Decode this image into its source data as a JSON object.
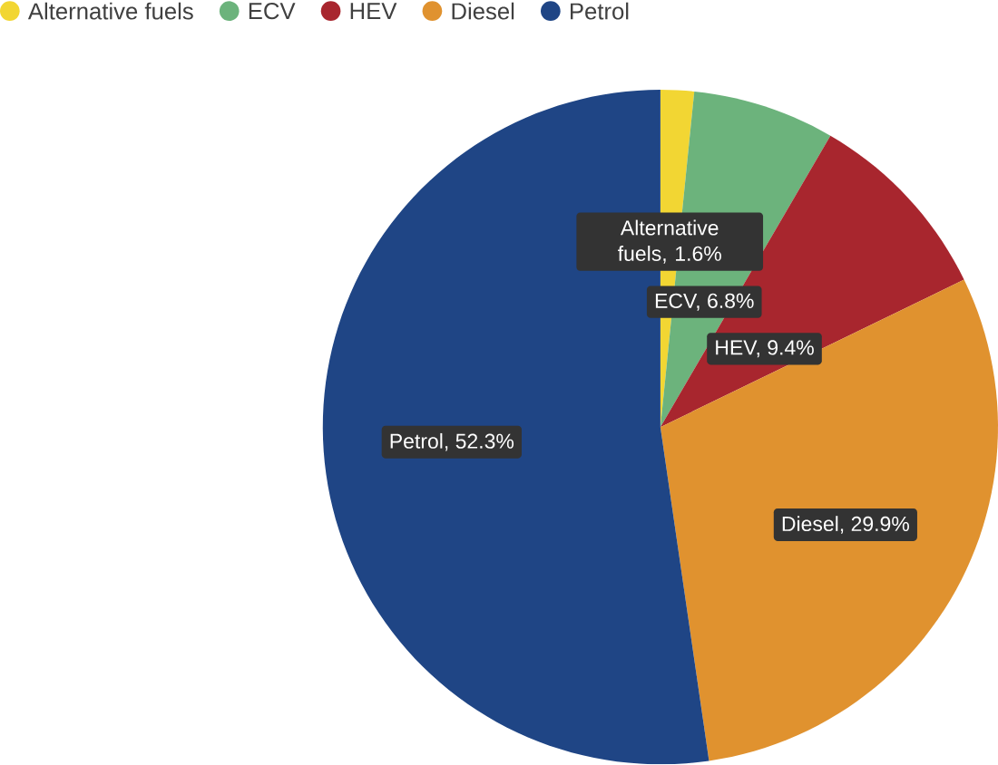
{
  "chart_data": {
    "type": "pie",
    "categories": [
      "Alternative fuels",
      "ECV",
      "HEV",
      "Diesel",
      "Petrol"
    ],
    "values": [
      1.6,
      6.8,
      9.4,
      29.9,
      52.3
    ],
    "colors": [
      "#f2d633",
      "#6cb37c",
      "#a8262e",
      "#e0922f",
      "#1f4585"
    ],
    "value_labels": [
      "Alternative fuels, 1.6%",
      "ECV, 6.8%",
      "HEV, 9.4%",
      "Diesel, 29.9%",
      "Petrol, 52.3%"
    ],
    "legend": "top left"
  }
}
